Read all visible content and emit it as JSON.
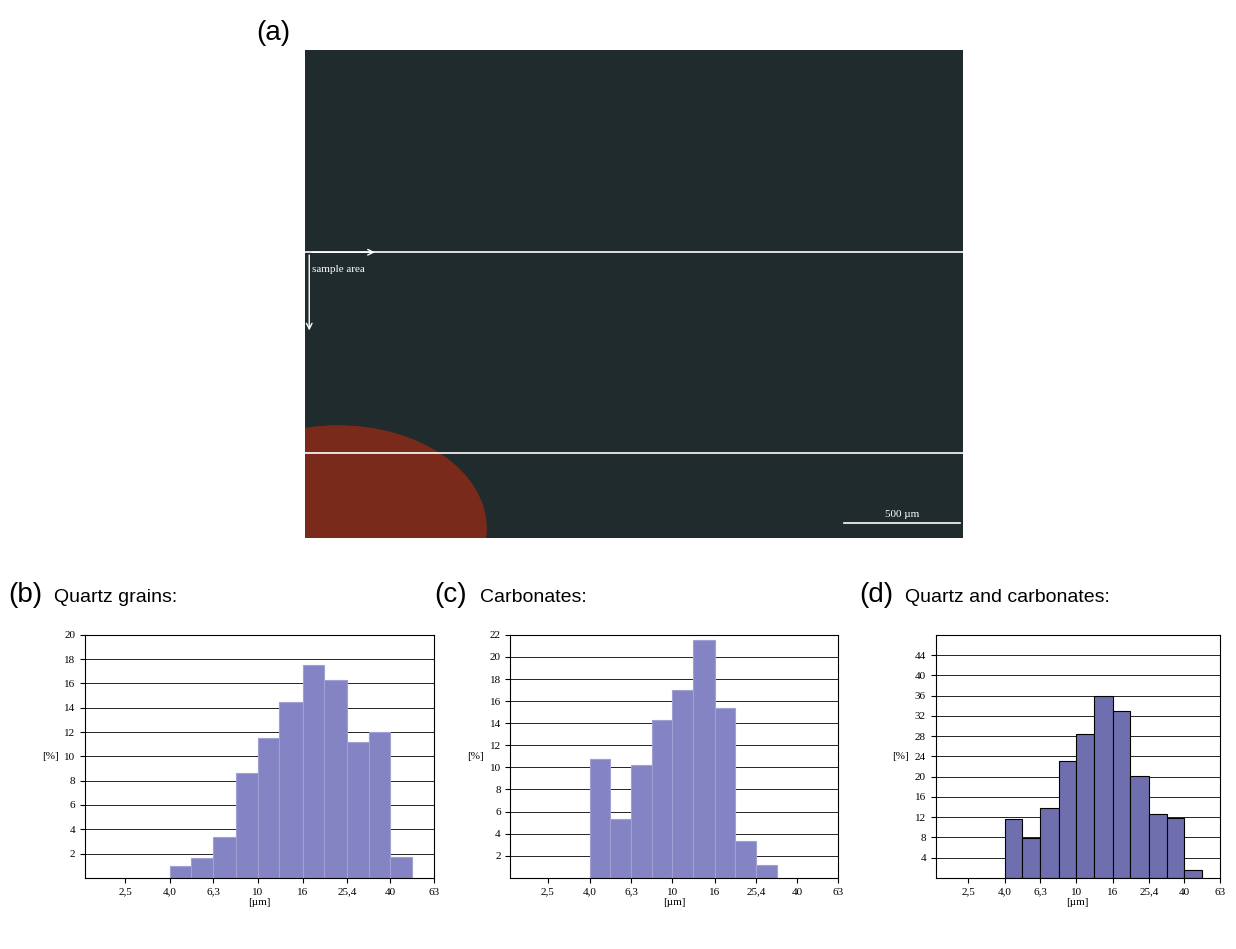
{
  "panel_a": {
    "label": "(a)",
    "annotation": "sample area",
    "scale_bar": "500 µm"
  },
  "chart_data": [
    {
      "type": "histogram",
      "label": "(b)",
      "title": "Quartz grains:",
      "x_label": "[µm]",
      "y_label": "[%]",
      "bins": [
        4.0,
        5.0,
        6.3,
        8.0,
        10,
        12.5,
        16,
        20,
        25.4,
        32,
        40,
        50
      ],
      "counts": [
        1.0,
        1.6,
        3.4,
        8.6,
        11.5,
        14.5,
        17.5,
        16.3,
        11.2,
        12.0,
        1.7
      ],
      "color": "#8484c4",
      "log": "x",
      "xlim": [
        1.65,
        63
      ],
      "xticks": [
        {
          "value": 2.5,
          "label": "2,5"
        },
        {
          "value": 4.0,
          "label": "4,0"
        },
        {
          "value": 6.3,
          "label": "6,3"
        },
        10,
        16,
        {
          "value": 25.4,
          "label": "25,4"
        },
        40,
        63
      ],
      "ylim": [
        0,
        20
      ],
      "yticks": [
        2,
        4,
        6,
        8,
        10,
        12,
        14,
        16,
        18,
        20
      ],
      "grid": true
    },
    {
      "type": "histogram",
      "label": "(c)",
      "title": "Carbonates:",
      "x_label": "[µm]",
      "y_label": "[%]",
      "bins": [
        4.0,
        5.0,
        6.3,
        8.0,
        10,
        12.5,
        16,
        20,
        25.4,
        32
      ],
      "counts": [
        10.8,
        5.3,
        10.2,
        14.3,
        17.0,
        21.5,
        15.4,
        3.3,
        1.2
      ],
      "color": "#8484c4",
      "log": "x",
      "xlim": [
        1.65,
        63
      ],
      "xticks": [
        {
          "value": 2.5,
          "label": "2,5"
        },
        {
          "value": 4.0,
          "label": "4,0"
        },
        {
          "value": 6.3,
          "label": "6,3"
        },
        10,
        16,
        {
          "value": 25.4,
          "label": "25,4"
        },
        40,
        63
      ],
      "ylim": [
        0,
        22
      ],
      "yticks": [
        2,
        4,
        6,
        8,
        10,
        12,
        14,
        16,
        18,
        20,
        22
      ],
      "grid": true
    },
    {
      "type": "histogram",
      "label": "(d)",
      "title": "Quartz and carbonates:",
      "x_label": "[µm]",
      "y_label": "[%]",
      "bins": [
        4.0,
        5.0,
        6.3,
        8.0,
        10,
        12.5,
        16,
        20,
        25.4,
        32,
        40,
        50
      ],
      "counts": [
        11.7,
        7.8,
        13.8,
        23.0,
        28.5,
        36.0,
        33.0,
        20.2,
        12.7,
        11.8,
        1.6
      ],
      "color": "#6f6fb0",
      "log": "x",
      "xlim": [
        1.65,
        63
      ],
      "xticks": [
        {
          "value": 2.5,
          "label": "2,5"
        },
        {
          "value": 4.0,
          "label": "4,0"
        },
        {
          "value": 6.3,
          "label": "6,3"
        },
        10,
        16,
        {
          "value": 25.4,
          "label": "25,4"
        },
        40,
        63
      ],
      "ylim": [
        0,
        48
      ],
      "yticks": [
        4,
        8,
        12,
        16,
        20,
        24,
        28,
        32,
        36,
        40,
        44
      ],
      "grid": true
    }
  ]
}
